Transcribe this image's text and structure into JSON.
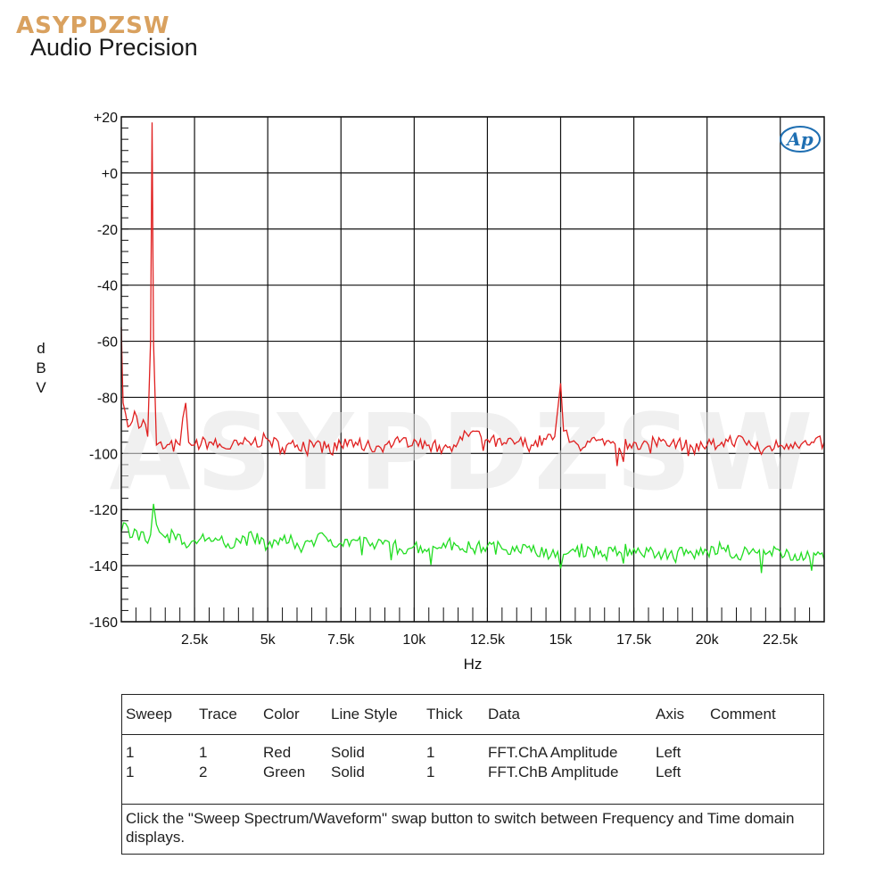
{
  "header": {
    "brand": "ASYPDZSW",
    "app_title": "Audio Precision"
  },
  "chart_data": {
    "type": "line",
    "title": "",
    "xlabel": "Hz",
    "ylabel": "dBV",
    "xlim": [
      0,
      24000
    ],
    "ylim": [
      -160,
      20
    ],
    "grid": true,
    "x_ticks": [
      2500,
      5000,
      7500,
      10000,
      12500,
      15000,
      17500,
      20000,
      22500
    ],
    "x_tick_labels": [
      "2.5k",
      "5k",
      "7.5k",
      "10k",
      "12.5k",
      "15k",
      "17.5k",
      "20k",
      "22.5k"
    ],
    "y_ticks": [
      20,
      0,
      -20,
      -40,
      -60,
      -80,
      -100,
      -120,
      -140,
      -160
    ],
    "y_tick_labels": [
      "+20",
      "+0",
      "-20",
      "-40",
      "-60",
      "-80",
      "-100",
      "-120",
      "-140",
      "-160"
    ],
    "watermark": "ASYPDZSW",
    "series": [
      {
        "color": "#e02020",
        "x": [
          0,
          30,
          60,
          150,
          300,
          450,
          600,
          750,
          900,
          1000,
          1050,
          1100,
          1200,
          1500,
          2000,
          2200,
          2300,
          2500,
          3000,
          3500,
          4000,
          4500,
          5000,
          5500,
          6000,
          6500,
          7000,
          7500,
          8000,
          8500,
          9000,
          9500,
          10000,
          10500,
          11000,
          11500,
          12000,
          12500,
          13000,
          13500,
          14000,
          14500,
          14800,
          15000,
          15100,
          15300,
          15600,
          16000,
          16500,
          17000,
          17500,
          18000,
          18500,
          19000,
          19500,
          20000,
          20500,
          21000,
          21500,
          22000,
          22500,
          23000,
          23500,
          24000
        ],
        "y": [
          -55,
          -70,
          -82,
          -86,
          -90,
          -85,
          -91,
          -88,
          -94,
          -60,
          18,
          -60,
          -97,
          -98,
          -97,
          -82,
          -96,
          -97,
          -96,
          -98,
          -97,
          -96,
          -95,
          -98,
          -97,
          -96,
          -98,
          -97,
          -96,
          -98,
          -97,
          -96,
          -95,
          -97,
          -98,
          -96,
          -92,
          -95,
          -97,
          -96,
          -97,
          -95,
          -94,
          -75,
          -92,
          -96,
          -97,
          -96,
          -97,
          -98,
          -96,
          -97,
          -95,
          -96,
          -98,
          -97,
          -96,
          -95,
          -97,
          -98,
          -97,
          -96,
          -97,
          -96
        ]
      },
      {
        "color": "#22dd22",
        "x": [
          0,
          150,
          300,
          450,
          600,
          750,
          900,
          1000,
          1100,
          1300,
          1500,
          2000,
          2300,
          2500,
          3000,
          3500,
          4000,
          4500,
          5000,
          5500,
          6000,
          6500,
          7000,
          7500,
          8000,
          8500,
          9000,
          9500,
          10000,
          10500,
          11000,
          11500,
          12000,
          12500,
          13000,
          13500,
          14000,
          14500,
          14900,
          15000,
          15100,
          15500,
          16000,
          16500,
          17000,
          17500,
          18000,
          18500,
          19000,
          19500,
          20000,
          20500,
          21000,
          21500,
          22000,
          22500,
          23000,
          23500,
          24000
        ],
        "y": [
          -128,
          -125,
          -130,
          -127,
          -131,
          -128,
          -132,
          -129,
          -118,
          -128,
          -130,
          -129,
          -133,
          -131,
          -130,
          -132,
          -131,
          -130,
          -133,
          -131,
          -132,
          -131,
          -130,
          -132,
          -131,
          -133,
          -131,
          -134,
          -133,
          -134,
          -132,
          -133,
          -134,
          -133,
          -134,
          -133,
          -135,
          -134,
          -135,
          -141,
          -136,
          -135,
          -134,
          -136,
          -135,
          -134,
          -135,
          -136,
          -135,
          -136,
          -135,
          -134,
          -136,
          -135,
          -136,
          -135,
          -136,
          -137,
          -138
        ]
      }
    ]
  },
  "legend": {
    "headers": [
      "Sweep",
      "Trace",
      "Color",
      "Line Style",
      "Thick",
      "Data",
      "Axis",
      "Comment"
    ],
    "rows": [
      [
        "1",
        "1",
        "Red",
        "Solid",
        "1",
        "FFT.ChA Amplitude",
        "Left",
        ""
      ],
      [
        "1",
        "2",
        "Green",
        "Solid",
        "1",
        "FFT.ChB Amplitude",
        "Left",
        ""
      ]
    ],
    "note": "Click the \"Sweep Spectrum/Waveform\" swap button to switch between Frequency and Time domain displays."
  },
  "logo": {
    "text": "Ap",
    "color": "#1f6fb2"
  }
}
